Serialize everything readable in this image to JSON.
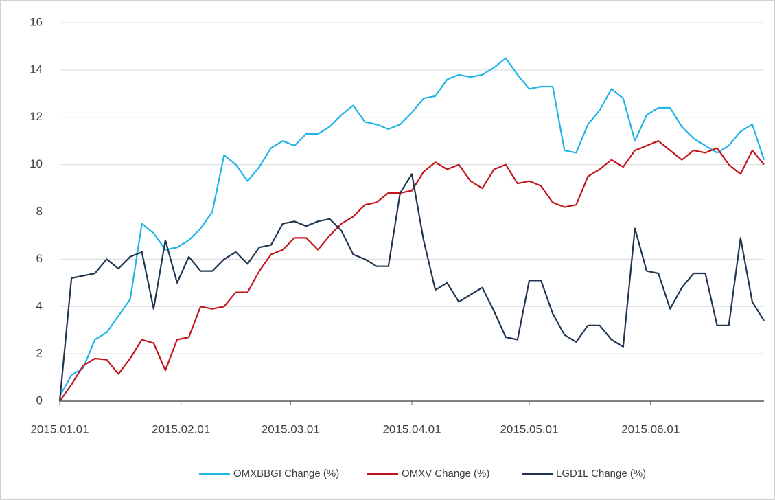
{
  "chart_data": {
    "type": "line",
    "x": [
      "2015.01.01",
      "2015.01.04",
      "2015.01.07",
      "2015.01.10",
      "2015.01.13",
      "2015.01.16",
      "2015.01.19",
      "2015.01.22",
      "2015.01.25",
      "2015.01.28",
      "2015.01.31",
      "2015.02.03",
      "2015.02.06",
      "2015.02.09",
      "2015.02.12",
      "2015.02.15",
      "2015.02.18",
      "2015.02.21",
      "2015.02.24",
      "2015.02.27",
      "2015.03.02",
      "2015.03.05",
      "2015.03.08",
      "2015.03.11",
      "2015.03.14",
      "2015.03.17",
      "2015.03.20",
      "2015.03.23",
      "2015.03.26",
      "2015.03.29",
      "2015.04.01",
      "2015.04.04",
      "2015.04.07",
      "2015.04.10",
      "2015.04.13",
      "2015.04.16",
      "2015.04.19",
      "2015.04.22",
      "2015.04.25",
      "2015.04.28",
      "2015.05.01",
      "2015.05.04",
      "2015.05.07",
      "2015.05.10",
      "2015.05.13",
      "2015.05.16",
      "2015.05.19",
      "2015.05.22",
      "2015.05.25",
      "2015.05.28",
      "2015.05.31",
      "2015.06.03",
      "2015.06.06",
      "2015.06.09",
      "2015.06.12",
      "2015.06.15",
      "2015.06.18",
      "2015.06.21",
      "2015.06.24",
      "2015.06.27",
      "2015.06.30"
    ],
    "series": [
      {
        "name": "OMXBBGI Change (%)",
        "color": "#1fb4e6",
        "values": [
          0.2,
          1.1,
          1.4,
          2.6,
          2.9,
          3.6,
          4.3,
          7.5,
          7.1,
          6.4,
          6.5,
          6.8,
          7.3,
          8,
          10.4,
          10.0,
          9.3,
          9.9,
          10.7,
          11.0,
          10.8,
          11.3,
          11.3,
          11.6,
          12.1,
          12.5,
          11.8,
          11.7,
          11.5,
          11.7,
          12.2,
          12.8,
          12.9,
          13.6,
          13.8,
          13.7,
          13.8,
          14.1,
          14.5,
          13.8,
          13.2,
          13.3,
          13.3,
          10.6,
          10.5,
          11.7,
          12.3,
          13.2,
          12.8,
          11,
          12.1,
          12.4,
          12.4,
          11.6,
          11.1,
          10.8,
          10.5,
          10.8,
          11.4,
          11.7,
          10.2
        ]
      },
      {
        "name": "OMXV Change (%)",
        "color": "#c0151c",
        "values": [
          0,
          0.7,
          1.5,
          1.8,
          1.75,
          1.15,
          1.8,
          2.6,
          2.45,
          1.3,
          2.6,
          2.7,
          4.0,
          3.9,
          4.0,
          4.6,
          4.6,
          5.5,
          6.2,
          6.4,
          6.9,
          6.9,
          6.4,
          7.0,
          7.5,
          7.8,
          8.3,
          8.4,
          8.8,
          8.8,
          8.9,
          9.7,
          10.1,
          9.8,
          10.0,
          9.3,
          9.0,
          9.8,
          10.0,
          9.2,
          9.3,
          9.1,
          8.4,
          8.2,
          8.3,
          9.5,
          9.8,
          10.2,
          9.9,
          10.6,
          10.8,
          11.0,
          10.6,
          10.2,
          10.6,
          10.5,
          10.7,
          10.0,
          9.6,
          10.6,
          10.0
        ]
      },
      {
        "name": "LGD1L Change (%)",
        "color": "#1f3550",
        "values": [
          0,
          5.2,
          5.3,
          5.4,
          6.0,
          5.6,
          6.1,
          6.3,
          3.9,
          6.8,
          5.0,
          6.1,
          5.5,
          5.5,
          6.0,
          6.3,
          5.8,
          6.5,
          6.6,
          7.5,
          7.6,
          7.4,
          7.6,
          7.7,
          7.2,
          6.2,
          6.0,
          5.7,
          5.7,
          8.8,
          9.6,
          6.8,
          4.7,
          5.0,
          4.2,
          4.5,
          4.8,
          3.8,
          2.7,
          2.6,
          5.1,
          5.1,
          3.7,
          2.8,
          2.5,
          3.2,
          3.2,
          2.6,
          2.3,
          7.3,
          5.5,
          5.4,
          3.9,
          4.8,
          5.4,
          5.4,
          3.2,
          3.2,
          6.9,
          4.2,
          3.4
        ]
      }
    ],
    "xlim": [
      "2015.01.01",
      "2015.06.30"
    ],
    "xticks": [
      "2015.01.01",
      "2015.02.01",
      "2015.03.01",
      "2015.04.01",
      "2015.05.01",
      "2015.06.01"
    ],
    "ylim": [
      0,
      16
    ],
    "yticks": [
      0,
      2,
      4,
      6,
      8,
      10,
      12,
      14,
      16
    ],
    "grid": true,
    "legend": "bottom"
  }
}
